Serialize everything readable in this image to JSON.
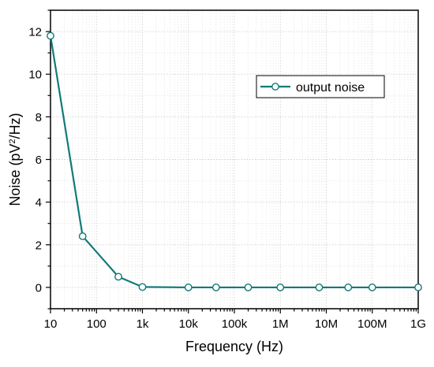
{
  "chart_data": {
    "type": "line",
    "title": "",
    "xlabel": "Frequency (Hz)",
    "ylabel": {
      "prefix": "Noise (pV",
      "superscript": "2",
      "suffix": "/Hz)"
    },
    "x_scale": "log",
    "xlim": [
      10,
      1000000000
    ],
    "ylim": [
      -1,
      13
    ],
    "x_ticks": [
      {
        "value": 10,
        "label": "10"
      },
      {
        "value": 100,
        "label": "100"
      },
      {
        "value": 1000,
        "label": "1k"
      },
      {
        "value": 10000,
        "label": "10k"
      },
      {
        "value": 100000,
        "label": "100k"
      },
      {
        "value": 1000000,
        "label": "1M"
      },
      {
        "value": 10000000,
        "label": "10M"
      },
      {
        "value": 100000000,
        "label": "100M"
      },
      {
        "value": 1000000000,
        "label": "1G"
      }
    ],
    "y_ticks": [
      {
        "value": 0,
        "label": "0"
      },
      {
        "value": 2,
        "label": "2"
      },
      {
        "value": 4,
        "label": "4"
      },
      {
        "value": 6,
        "label": "6"
      },
      {
        "value": 8,
        "label": "8"
      },
      {
        "value": 10,
        "label": "10"
      },
      {
        "value": 12,
        "label": "12"
      }
    ],
    "grid": true,
    "legend_position": "upper-right",
    "series": [
      {
        "name": "output noise",
        "color": "#127a78",
        "marker": "open-circle",
        "x": [
          10,
          50,
          300,
          1000,
          10000,
          40000,
          200000,
          1000000,
          7000000,
          30000000,
          100000000,
          1000000000
        ],
        "y": [
          11.8,
          2.4,
          0.5,
          0.02,
          0.0,
          0.0,
          0.0,
          0.0,
          0.0,
          0.0,
          0.0,
          0.0
        ]
      }
    ]
  }
}
